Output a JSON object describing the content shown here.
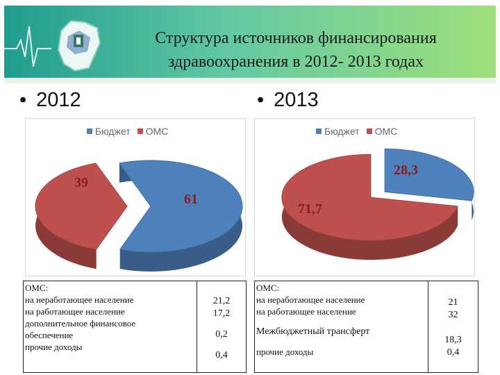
{
  "title": {
    "line1": "Структура источников финансирования",
    "line2": "здравоохранения в 2012- 2013 годах"
  },
  "icons": {
    "header_left": "ecg-line-icon",
    "header_logo": "region-map-medical-icon"
  },
  "colors": {
    "budget": "#4f81bd",
    "oms": "#c0504d",
    "label_text": "#8b1a1a"
  },
  "bullets": {
    "left": "2012",
    "right": "2013",
    "dot": "•"
  },
  "chart_data": [
    {
      "type": "pie",
      "title": "2012",
      "legend": [
        "Бюджет",
        "ОМС"
      ],
      "legend_position": "top",
      "slices": [
        {
          "label": "Бюджет",
          "value": 61,
          "value_label": "61"
        },
        {
          "label": "ОМС",
          "value": 39,
          "value_label": "39"
        }
      ]
    },
    {
      "type": "pie",
      "title": "2013",
      "legend": [
        "Бюджет",
        "ОМС"
      ],
      "legend_position": "top",
      "slices": [
        {
          "label": "Бюджет",
          "value": 28.3,
          "value_label": "28,3"
        },
        {
          "label": "ОМС",
          "value": 71.7,
          "value_label": "71,7"
        }
      ]
    }
  ],
  "table_2012": {
    "header": "ОМС:",
    "rows": [
      {
        "label": "на неработающее население",
        "value": "21,2"
      },
      {
        "label": "на работающее население",
        "value": "17,2"
      },
      {
        "label_lines": [
          "дополнительное финансовое",
          "обеспечение"
        ],
        "value": "0,2"
      },
      {
        "label": "прочие доходы",
        "value": "0,4"
      }
    ]
  },
  "table_2013": {
    "header": "ОМС:",
    "rows": [
      {
        "label": "на неработающее население",
        "value": "21"
      },
      {
        "label": "на работающее население",
        "value": "32"
      },
      {
        "label": "Межбюджетный трансферт",
        "value": "18,3"
      },
      {
        "label": "прочие доходы",
        "value": "0,4"
      }
    ]
  }
}
